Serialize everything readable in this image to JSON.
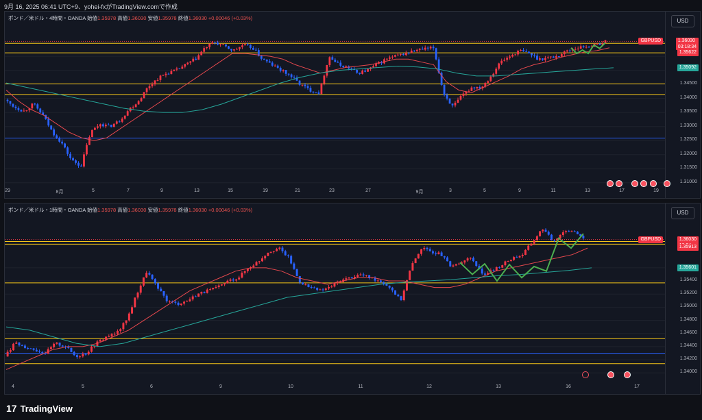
{
  "top_label": "9月 16, 2025 06:41 UTC+9、yohei-fxがTradingView.comで作成",
  "footer": {
    "logo_glyph": "17",
    "brand": "TradingView"
  },
  "colors": {
    "up": "#f23645",
    "down": "#2962ff",
    "ma_red": "#e5484d",
    "ma_teal": "#26a69a",
    "hline_yellow": "#f5c518",
    "hline_blue": "#2962ff",
    "zigzag_green": "#4caf50"
  },
  "chart_data": [
    {
      "type": "candlestick",
      "symbol": "GBPUSD",
      "currency": "USD",
      "header": {
        "title": "ポンド／米ドル・4時間・OANDA",
        "open_label": "始値",
        "open": "1.35978",
        "high_label": "高値",
        "high": "1.36030",
        "low_label": "安値",
        "low": "1.35978",
        "close_label": "終値",
        "close": "1.36030",
        "change": "+0.00046 (+0.03%)"
      },
      "yticks": [
        "1.36000",
        "1.35500",
        "1.35000",
        "1.34500",
        "1.34000",
        "1.33500",
        "1.33000",
        "1.32500",
        "1.32000",
        "1.31500",
        "1.31000"
      ],
      "ylim": [
        1.308,
        1.3655
      ],
      "xticks": [
        "29",
        "8月",
        "5",
        "7",
        "9",
        "13",
        "15",
        "19",
        "21",
        "23",
        "27",
        "9月",
        "3",
        "5",
        "9",
        "11",
        "13",
        "17",
        "19"
      ],
      "price_tag": {
        "value": "1.36030",
        "countdown": "03:18:34",
        "color": "#f23645"
      },
      "level_tags": [
        {
          "value": "1.35622",
          "color": "#f23645"
        },
        {
          "value": "1.35092",
          "color": "#26a69a"
        }
      ],
      "hlines": [
        {
          "y": 1.3596,
          "color": "hline_yellow"
        },
        {
          "y": 1.3562,
          "color": "hline_yellow"
        },
        {
          "y": 1.3452,
          "color": "hline_yellow"
        },
        {
          "y": 1.3414,
          "color": "hline_yellow"
        },
        {
          "y": 1.3259,
          "color": "hline_blue"
        }
      ],
      "path": [
        1.3395,
        1.337,
        1.3355,
        1.338,
        1.334,
        1.328,
        1.324,
        1.318,
        1.316,
        1.328,
        1.331,
        1.33,
        1.332,
        1.336,
        1.339,
        1.344,
        1.347,
        1.349,
        1.35,
        1.352,
        1.354,
        1.358,
        1.36,
        1.3585,
        1.357,
        1.359,
        1.358,
        1.354,
        1.352,
        1.35,
        1.348,
        1.345,
        1.343,
        1.342,
        1.355,
        1.352,
        1.351,
        1.349,
        1.35,
        1.352,
        1.354,
        1.355,
        1.356,
        1.357,
        1.3575,
        1.358,
        1.342,
        1.337,
        1.341,
        1.344,
        1.344,
        1.348,
        1.353,
        1.355,
        1.357,
        1.356,
        1.354,
        1.3545,
        1.355,
        1.357,
        1.358,
        1.3585,
        1.359,
        1.3603
      ],
      "ma_red": [
        1.343,
        1.339,
        1.336,
        1.334,
        1.331,
        1.328,
        1.326,
        1.325,
        1.326,
        1.329,
        1.332,
        1.335,
        1.338,
        1.341,
        1.344,
        1.347,
        1.35,
        1.353,
        1.356,
        1.356,
        1.3555,
        1.355,
        1.354,
        1.352,
        1.3505,
        1.349,
        1.35,
        1.351,
        1.3515,
        1.352,
        1.353,
        1.354,
        1.354,
        1.353,
        1.352,
        1.346,
        1.343,
        1.342,
        1.344,
        1.346,
        1.348,
        1.3505,
        1.352,
        1.353,
        1.3545,
        1.3555,
        1.3565,
        1.357,
        1.358
      ],
      "ma_teal": [
        1.3455,
        1.344,
        1.3425,
        1.341,
        1.3395,
        1.338,
        1.3365,
        1.3355,
        1.335,
        1.335,
        1.336,
        1.338,
        1.3405,
        1.343,
        1.3455,
        1.3475,
        1.349,
        1.35,
        1.3505,
        1.351,
        1.3515,
        1.3512,
        1.3505,
        1.349,
        1.348,
        1.348,
        1.3485,
        1.349,
        1.3495,
        1.35,
        1.3505,
        1.3509
      ],
      "zigzag": [
        1.358,
        1.356,
        1.3572,
        1.356,
        1.359,
        1.3578,
        1.3598
      ]
    },
    {
      "type": "candlestick",
      "symbol": "GBPUSD",
      "currency": "USD",
      "header": {
        "title": "ポンド／米ドル・1時間・OANDA",
        "open_label": "始値",
        "open": "1.35978",
        "high_label": "高値",
        "high": "1.36030",
        "low_label": "安値",
        "low": "1.35978",
        "close_label": "終値",
        "close": "1.36030",
        "change": "+0.00046 (+0.03%)"
      },
      "yticks": [
        "1.36000",
        "1.35600",
        "1.35400",
        "1.35200",
        "1.35000",
        "1.34800",
        "1.34600",
        "1.34400",
        "1.34200",
        "1.34000"
      ],
      "ylim": [
        1.3395,
        1.3635
      ],
      "xticks": [
        "4",
        "5",
        "6",
        "9",
        "10",
        "11",
        "12",
        "13",
        "16",
        "17"
      ],
      "price_tag": {
        "value": "1.36030",
        "countdown": "18:34",
        "color": "#f23645"
      },
      "level_tags": [
        {
          "value": "1.35913",
          "color": "#f23645"
        },
        {
          "value": "1.35601",
          "color": "#26a69a"
        }
      ],
      "hlines": [
        {
          "y": 1.36,
          "color": "hline_yellow"
        },
        {
          "y": 1.3596,
          "color": "hline_yellow"
        },
        {
          "y": 1.3537,
          "color": "hline_yellow"
        },
        {
          "y": 1.3452,
          "color": "hline_yellow"
        },
        {
          "y": 1.343,
          "color": "hline_blue"
        },
        {
          "y": 1.3414,
          "color": "hline_yellow"
        }
      ],
      "path": [
        1.3425,
        1.3445,
        1.344,
        1.3435,
        1.343,
        1.3445,
        1.344,
        1.3425,
        1.343,
        1.3445,
        1.3455,
        1.346,
        1.348,
        1.352,
        1.3555,
        1.353,
        1.351,
        1.3505,
        1.351,
        1.352,
        1.3525,
        1.353,
        1.354,
        1.3545,
        1.356,
        1.357,
        1.3585,
        1.359,
        1.3575,
        1.354,
        1.353,
        1.3525,
        1.353,
        1.354,
        1.3545,
        1.355,
        1.3545,
        1.354,
        1.353,
        1.351,
        1.356,
        1.359,
        1.3585,
        1.358,
        1.356,
        1.357,
        1.3575,
        1.355,
        1.3555,
        1.3565,
        1.3575,
        1.358,
        1.36,
        1.362,
        1.36,
        1.3615,
        1.3618,
        1.3603
      ],
      "ma_red": [
        1.3405,
        1.3415,
        1.3425,
        1.3435,
        1.344,
        1.344,
        1.3445,
        1.3455,
        1.3465,
        1.348,
        1.3495,
        1.351,
        1.3525,
        1.3535,
        1.3545,
        1.3555,
        1.356,
        1.356,
        1.3555,
        1.3545,
        1.354,
        1.3535,
        1.354,
        1.3545,
        1.3545,
        1.354,
        1.354,
        1.3535,
        1.353,
        1.353,
        1.3535,
        1.3545,
        1.3555,
        1.356,
        1.3565,
        1.357,
        1.3575,
        1.358,
        1.359
      ],
      "ma_teal": [
        1.347,
        1.3465,
        1.3455,
        1.3445,
        1.344,
        1.3445,
        1.3455,
        1.3465,
        1.3475,
        1.3485,
        1.3495,
        1.3505,
        1.3515,
        1.352,
        1.3525,
        1.353,
        1.3535,
        1.3538,
        1.354,
        1.3542,
        1.3545,
        1.3548,
        1.355,
        1.3553,
        1.3556,
        1.356
      ],
      "zigzag": [
        1.3568,
        1.355,
        1.3566,
        1.354,
        1.3565,
        1.3545,
        1.3562,
        1.3555,
        1.3605,
        1.359,
        1.3612
      ]
    }
  ]
}
